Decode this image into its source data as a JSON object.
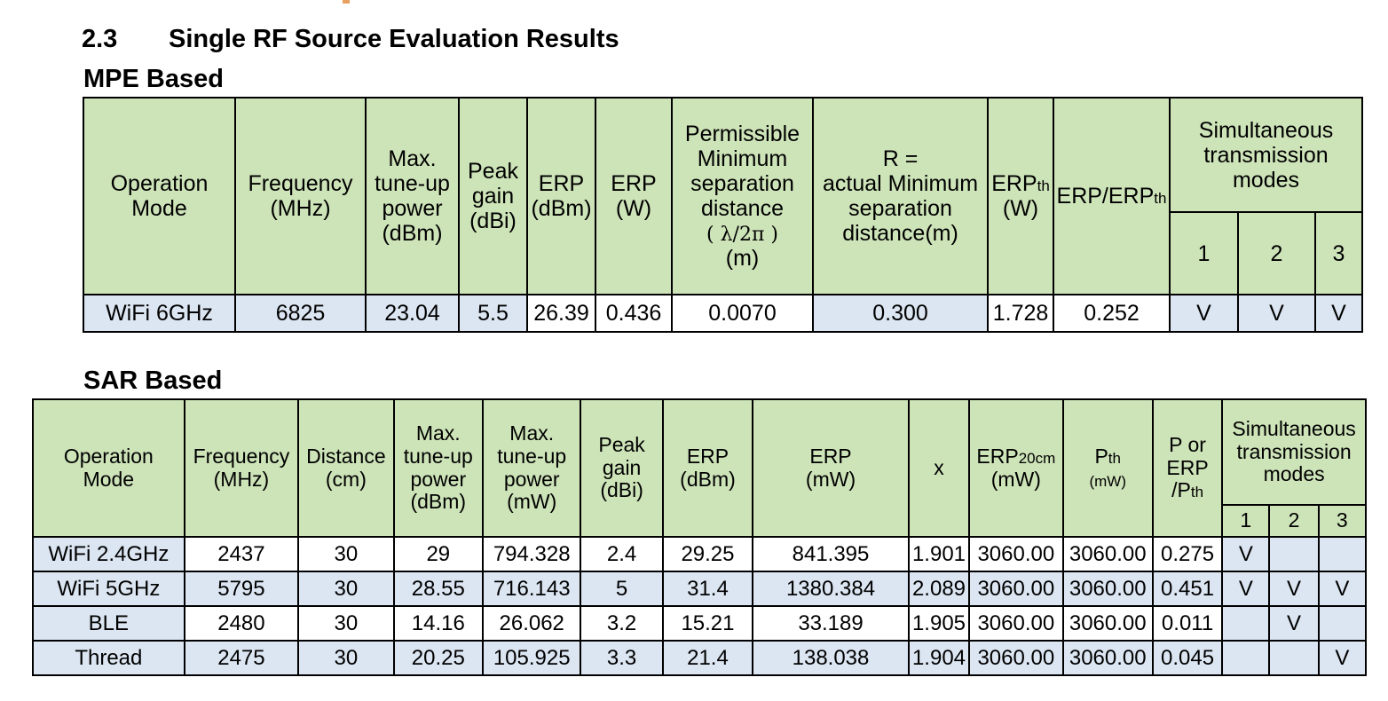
{
  "section": {
    "number": "2.3",
    "title": "Single RF Source Evaluation Results"
  },
  "mpe": {
    "heading": "MPE Based",
    "headers": {
      "mode_line1": "Operation",
      "mode_line2": "Mode",
      "freq_line1": "Frequency",
      "freq_line2": "(MHz)",
      "power_line1": "Max.",
      "power_line2": "tune-up",
      "power_line3": "power",
      "power_line4": "(dBm)",
      "gain_line1": "Peak",
      "gain_line2": "gain",
      "gain_line3": "(dBi)",
      "erp_dbm_line1": "ERP",
      "erp_dbm_line2": "(dBm)",
      "erp_w_line1": "ERP",
      "erp_w_line2": "(W)",
      "perm_line1": "Permissible",
      "perm_line2": "Minimum",
      "perm_line3": "separation",
      "perm_line4": "distance",
      "perm_line5": "( λ/2π )",
      "perm_line6": "(m)",
      "r_line1": "R =",
      "r_line2": "actual Minimum",
      "r_line3": "separation",
      "r_line4": "distance(m)",
      "erpth_main": "ERP",
      "erpth_sub": "th",
      "erpth_unit": "(W)",
      "ratio_main": "ERP/ERP",
      "ratio_sub": "th",
      "sim_line1": "Simultaneous",
      "sim_line2": "transmission",
      "sim_line3": "modes",
      "sim_cols": [
        "1",
        "2",
        "3"
      ]
    },
    "rows": [
      {
        "mode": "WiFi 6GHz",
        "freq": "6825",
        "power": "23.04",
        "gain": "5.5",
        "erp_dbm": "26.39",
        "erp_w": "0.436",
        "perm": "0.0070",
        "r": "0.300",
        "erpth": "1.728",
        "ratio": "0.252",
        "s1": "V",
        "s2": "V",
        "s3": "V"
      }
    ]
  },
  "sar": {
    "heading": "SAR Based",
    "headers": {
      "mode_line1": "Operation",
      "mode_line2": "Mode",
      "freq_line1": "Frequency",
      "freq_line2": "(MHz)",
      "dist_line1": "Distance",
      "dist_line2": "(cm)",
      "pdbm_line1": "Max.",
      "pdbm_line2": "tune-up",
      "pdbm_line3": "power",
      "pdbm_line4": "(dBm)",
      "pmw_line1": "Max.",
      "pmw_line2": "tune-up",
      "pmw_line3": "power",
      "pmw_line4": "(mW)",
      "gain_line1": "Peak",
      "gain_line2": "gain",
      "gain_line3": "(dBi)",
      "erp_dbm_line1": "ERP",
      "erp_dbm_line2": "(dBm)",
      "erp_mw_line1": "ERP",
      "erp_mw_line2": "(mW)",
      "x": "x",
      "erp20_main": "ERP",
      "erp20_sub": "20cm",
      "erp20_unit": "(mW)",
      "pth_main": "P",
      "pth_sub": "th",
      "pth_unit": "(mW)",
      "ratio_line1": "P or",
      "ratio_line2": "ERP",
      "ratio_line3": "/P",
      "ratio_sub": "th",
      "sim_line1": "Simultaneous",
      "sim_line2": "transmission",
      "sim_line3": "modes",
      "sim_cols": [
        "1",
        "2",
        "3"
      ]
    },
    "rows": [
      {
        "mode": "WiFi 2.4GHz",
        "freq": "2437",
        "dist": "30",
        "pdbm": "29",
        "pmw": "794.328",
        "gain": "2.4",
        "erp_dbm": "29.25",
        "erp_mw": "841.395",
        "x": "1.901",
        "erp20": "3060.00",
        "pth": "3060.00",
        "ratio": "0.275",
        "s1": "V",
        "s2": "",
        "s3": ""
      },
      {
        "mode": "WiFi 5GHz",
        "freq": "5795",
        "dist": "30",
        "pdbm": "28.55",
        "pmw": "716.143",
        "gain": "5",
        "erp_dbm": "31.4",
        "erp_mw": "1380.384",
        "x": "2.089",
        "erp20": "3060.00",
        "pth": "3060.00",
        "ratio": "0.451",
        "s1": "V",
        "s2": "V",
        "s3": "V"
      },
      {
        "mode": "BLE",
        "freq": "2480",
        "dist": "30",
        "pdbm": "14.16",
        "pmw": "26.062",
        "gain": "3.2",
        "erp_dbm": "15.21",
        "erp_mw": "33.189",
        "x": "1.905",
        "erp20": "3060.00",
        "pth": "3060.00",
        "ratio": "0.011",
        "s1": "",
        "s2": "V",
        "s3": ""
      },
      {
        "mode": "Thread",
        "freq": "2475",
        "dist": "30",
        "pdbm": "20.25",
        "pmw": "105.925",
        "gain": "3.3",
        "erp_dbm": "21.4",
        "erp_mw": "138.038",
        "x": "1.904",
        "erp20": "3060.00",
        "pth": "3060.00",
        "ratio": "0.045",
        "s1": "",
        "s2": "",
        "s3": "V"
      }
    ]
  }
}
